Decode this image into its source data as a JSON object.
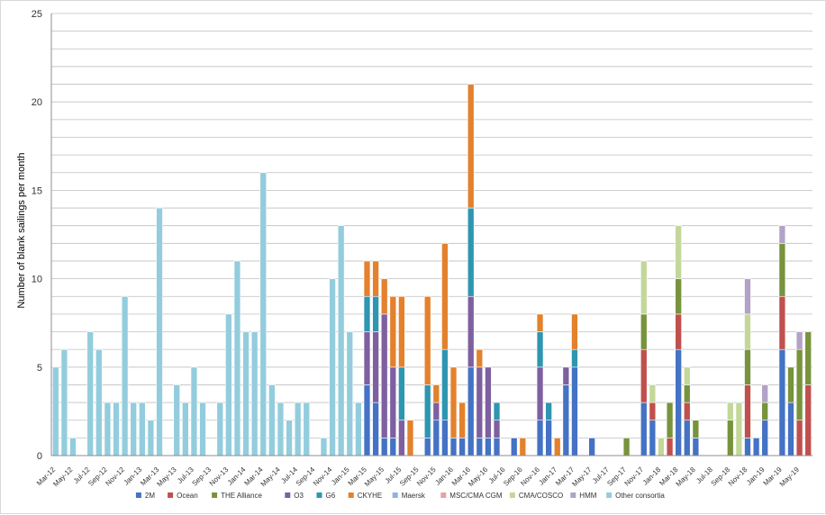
{
  "chart_data": {
    "type": "bar",
    "stacked": true,
    "title": "",
    "xlabel": "",
    "ylabel": "Number of blank sailings per month",
    "ylim": [
      0,
      25
    ],
    "yticks": [
      0,
      5,
      10,
      15,
      20,
      25
    ],
    "grid": true,
    "legend_position": "bottom",
    "categories": [
      "Mar-12",
      "Apr-12",
      "May-12",
      "Jun-12",
      "Jul-12",
      "Aug-12",
      "Sep-12",
      "Oct-12",
      "Nov-12",
      "Dec-12",
      "Jan-13",
      "Feb-13",
      "Mar-13",
      "Apr-13",
      "May-13",
      "Jun-13",
      "Jul-13",
      "Aug-13",
      "Sep-13",
      "Oct-13",
      "Nov-13",
      "Dec-13",
      "Jan-14",
      "Feb-14",
      "Mar-14",
      "Apr-14",
      "May-14",
      "Jun-14",
      "Jul-14",
      "Aug-14",
      "Sep-14",
      "Oct-14",
      "Nov-14",
      "Dec-14",
      "Jan-15",
      "Feb-15",
      "Mar-15",
      "Apr-15",
      "May-15",
      "Jun-15",
      "Jul-15",
      "Aug-15",
      "Sep-15",
      "Oct-15",
      "Nov-15",
      "Dec-15",
      "Jan-16",
      "Feb-16",
      "Mar-16",
      "Apr-16",
      "May-16",
      "Jun-16",
      "Jul-16",
      "Aug-16",
      "Sep-16",
      "Oct-16",
      "Nov-16",
      "Dec-16",
      "Jan-17",
      "Feb-17",
      "Mar-17",
      "Apr-17",
      "May-17",
      "Jun-17",
      "Jul-17",
      "Aug-17",
      "Sep-17",
      "Oct-17",
      "Nov-17",
      "Dec-17",
      "Jan-18",
      "Feb-18",
      "Mar-18",
      "Apr-18",
      "May-18",
      "Jun-18",
      "Jul-18",
      "Aug-18",
      "Sep-18",
      "Oct-18",
      "Nov-18",
      "Dec-18",
      "Jan-19",
      "Feb-19",
      "Mar-19",
      "Apr-19",
      "May-19",
      "Jun-19"
    ],
    "tick_labels": [
      "Mar-12",
      "May-12",
      "Jul-12",
      "Sep-12",
      "Nov-12",
      "Jan-13",
      "Mar-13",
      "May-13",
      "Jul-13",
      "Sep-13",
      "Nov-13",
      "Jan-14",
      "Mar-14",
      "May-14",
      "Jul-14",
      "Sep-14",
      "Nov-14",
      "Jan-15",
      "Mar-15",
      "May-15",
      "Jul-15",
      "Sep-15",
      "Nov-15",
      "Jan-16",
      "Mar-16",
      "May-16",
      "Jul-16",
      "Sep-16",
      "Nov-16",
      "Jan-17",
      "Mar-17",
      "May-17",
      "Jul-17",
      "Sep-17",
      "Nov-17",
      "Jan-18",
      "Mar-18",
      "May-18",
      "Jul-18",
      "Sep-18",
      "Nov-18",
      "Jan-19",
      "Mar-19",
      "May-19"
    ],
    "series": [
      {
        "name": "2M",
        "color": "#4472c4",
        "values": [
          0,
          0,
          0,
          0,
          0,
          0,
          0,
          0,
          0,
          0,
          0,
          0,
          0,
          0,
          0,
          0,
          0,
          0,
          0,
          0,
          0,
          0,
          0,
          0,
          0,
          0,
          0,
          0,
          0,
          0,
          0,
          0,
          0,
          0,
          0,
          0,
          4,
          3,
          1,
          1,
          0,
          0,
          0,
          1,
          2,
          2,
          1,
          1,
          5,
          1,
          1,
          1,
          0,
          1,
          0,
          0,
          2,
          2,
          0,
          4,
          5,
          0,
          1,
          0,
          0,
          0,
          0,
          0,
          3,
          2,
          0,
          0,
          6,
          2,
          1,
          0,
          0,
          0,
          0,
          0,
          1,
          1,
          2,
          0,
          6,
          3,
          0,
          0
        ]
      },
      {
        "name": "Ocean",
        "color": "#c0504d",
        "values": [
          0,
          0,
          0,
          0,
          0,
          0,
          0,
          0,
          0,
          0,
          0,
          0,
          0,
          0,
          0,
          0,
          0,
          0,
          0,
          0,
          0,
          0,
          0,
          0,
          0,
          0,
          0,
          0,
          0,
          0,
          0,
          0,
          0,
          0,
          0,
          0,
          0,
          0,
          0,
          0,
          0,
          0,
          0,
          0,
          0,
          0,
          0,
          0,
          0,
          0,
          0,
          0,
          0,
          0,
          0,
          0,
          0,
          0,
          0,
          0,
          0,
          0,
          0,
          0,
          0,
          0,
          0,
          0,
          3,
          1,
          0,
          1,
          2,
          1,
          0,
          0,
          0,
          0,
          0,
          0,
          3,
          0,
          0,
          0,
          3,
          0,
          2,
          4
        ]
      },
      {
        "name": "THE Alliance",
        "color": "#77933c",
        "values": [
          0,
          0,
          0,
          0,
          0,
          0,
          0,
          0,
          0,
          0,
          0,
          0,
          0,
          0,
          0,
          0,
          0,
          0,
          0,
          0,
          0,
          0,
          0,
          0,
          0,
          0,
          0,
          0,
          0,
          0,
          0,
          0,
          0,
          0,
          0,
          0,
          0,
          0,
          0,
          0,
          0,
          0,
          0,
          0,
          0,
          0,
          0,
          0,
          0,
          0,
          0,
          0,
          0,
          0,
          0,
          0,
          0,
          0,
          0,
          0,
          0,
          0,
          0,
          0,
          0,
          0,
          1,
          0,
          2,
          0,
          0,
          2,
          2,
          1,
          1,
          0,
          0,
          0,
          2,
          0,
          2,
          0,
          1,
          0,
          3,
          2,
          4,
          3
        ]
      },
      {
        "name": "O3",
        "color": "#7e5fa0",
        "values": [
          0,
          0,
          0,
          0,
          0,
          0,
          0,
          0,
          0,
          0,
          0,
          0,
          0,
          0,
          0,
          0,
          0,
          0,
          0,
          0,
          0,
          0,
          0,
          0,
          0,
          0,
          0,
          0,
          0,
          0,
          0,
          0,
          0,
          0,
          0,
          0,
          3,
          4,
          7,
          4,
          2,
          0,
          0,
          0,
          1,
          0,
          0,
          0,
          4,
          4,
          4,
          1,
          0,
          0,
          0,
          0,
          3,
          0,
          0,
          1,
          0,
          0,
          0,
          0,
          0,
          0,
          0,
          0,
          0,
          0,
          0,
          0,
          0,
          0,
          0,
          0,
          0,
          0,
          0,
          0,
          0,
          0,
          0,
          0,
          0,
          0,
          0,
          0
        ]
      },
      {
        "name": "G6",
        "color": "#2e96b0",
        "values": [
          0,
          0,
          0,
          0,
          0,
          0,
          0,
          0,
          0,
          0,
          0,
          0,
          0,
          0,
          0,
          0,
          0,
          0,
          0,
          0,
          0,
          0,
          0,
          0,
          0,
          0,
          0,
          0,
          0,
          0,
          0,
          0,
          0,
          0,
          0,
          0,
          2,
          2,
          0,
          0,
          3,
          0,
          0,
          3,
          0,
          4,
          0,
          0,
          5,
          0,
          0,
          1,
          0,
          0,
          0,
          0,
          2,
          1,
          0,
          0,
          1,
          0,
          0,
          0,
          0,
          0,
          0,
          0,
          0,
          0,
          0,
          0,
          0,
          0,
          0,
          0,
          0,
          0,
          0,
          0,
          0,
          0,
          0,
          0,
          0,
          0,
          0,
          0
        ]
      },
      {
        "name": "CKYHE",
        "color": "#e3812c",
        "values": [
          0,
          0,
          0,
          0,
          0,
          0,
          0,
          0,
          0,
          0,
          0,
          0,
          0,
          0,
          0,
          0,
          0,
          0,
          0,
          0,
          0,
          0,
          0,
          0,
          0,
          0,
          0,
          0,
          0,
          0,
          0,
          0,
          0,
          0,
          0,
          0,
          2,
          2,
          2,
          4,
          4,
          2,
          0,
          5,
          1,
          6,
          4,
          2,
          7,
          1,
          0,
          0,
          0,
          0,
          1,
          0,
          1,
          0,
          1,
          0,
          2,
          0,
          0,
          0,
          0,
          0,
          0,
          0,
          0,
          0,
          0,
          0,
          0,
          0,
          0,
          0,
          0,
          0,
          0,
          0,
          0,
          0,
          0,
          0,
          0,
          0,
          0,
          0
        ]
      },
      {
        "name": "Maersk",
        "color": "#8eb4e3",
        "values": [
          0,
          0,
          0,
          0,
          0,
          0,
          0,
          0,
          0,
          0,
          0,
          0,
          0,
          0,
          0,
          0,
          0,
          0,
          0,
          0,
          0,
          0,
          0,
          0,
          0,
          0,
          0,
          0,
          0,
          0,
          0,
          0,
          0,
          0,
          0,
          0,
          0,
          0,
          0,
          0,
          0,
          0,
          0,
          0,
          0,
          0,
          0,
          0,
          0,
          0,
          0,
          0,
          0,
          0,
          0,
          0,
          0,
          0,
          0,
          0,
          0,
          0,
          0,
          0,
          0,
          0,
          0,
          0,
          0,
          0,
          0,
          0,
          0,
          0,
          0,
          0,
          0,
          0,
          0,
          0,
          0,
          0,
          0,
          0,
          0,
          0,
          0,
          0
        ]
      },
      {
        "name": "MSC/CMA CGM",
        "color": "#e6a1a6",
        "values": [
          0,
          0,
          0,
          0,
          0,
          0,
          0,
          0,
          0,
          0,
          0,
          0,
          0,
          0,
          0,
          0,
          0,
          0,
          0,
          0,
          0,
          0,
          0,
          0,
          0,
          0,
          0,
          0,
          0,
          0,
          0,
          0,
          0,
          0,
          0,
          0,
          0,
          0,
          0,
          0,
          0,
          0,
          0,
          0,
          0,
          0,
          0,
          0,
          0,
          0,
          0,
          0,
          0,
          0,
          0,
          0,
          0,
          0,
          0,
          0,
          0,
          0,
          0,
          0,
          0,
          0,
          0,
          0,
          0,
          0,
          0,
          0,
          0,
          0,
          0,
          0,
          0,
          0,
          0,
          0,
          0,
          0,
          0,
          0,
          0,
          0,
          0,
          0
        ]
      },
      {
        "name": "CMA/COSCO",
        "color": "#c4d79b",
        "values": [
          0,
          0,
          0,
          0,
          0,
          0,
          0,
          0,
          0,
          0,
          0,
          0,
          0,
          0,
          0,
          0,
          0,
          0,
          0,
          0,
          0,
          0,
          0,
          0,
          0,
          0,
          0,
          0,
          0,
          0,
          0,
          0,
          0,
          0,
          0,
          0,
          0,
          0,
          0,
          0,
          0,
          0,
          0,
          0,
          0,
          0,
          0,
          0,
          0,
          0,
          0,
          0,
          0,
          0,
          0,
          0,
          0,
          0,
          0,
          0,
          0,
          0,
          0,
          0,
          0,
          0,
          0,
          0,
          3,
          1,
          1,
          0,
          3,
          1,
          0,
          0,
          0,
          0,
          1,
          3,
          2,
          0,
          0,
          0,
          0,
          0,
          0,
          0
        ]
      },
      {
        "name": "HMM",
        "color": "#b3a2c7",
        "values": [
          0,
          0,
          0,
          0,
          0,
          0,
          0,
          0,
          0,
          0,
          0,
          0,
          0,
          0,
          0,
          0,
          0,
          0,
          0,
          0,
          0,
          0,
          0,
          0,
          0,
          0,
          0,
          0,
          0,
          0,
          0,
          0,
          0,
          0,
          0,
          0,
          0,
          0,
          0,
          0,
          0,
          0,
          0,
          0,
          0,
          0,
          0,
          0,
          0,
          0,
          0,
          0,
          0,
          0,
          0,
          0,
          0,
          0,
          0,
          0,
          0,
          0,
          0,
          0,
          0,
          0,
          0,
          0,
          0,
          0,
          0,
          0,
          0,
          0,
          0,
          0,
          0,
          0,
          0,
          0,
          2,
          0,
          1,
          0,
          1,
          0,
          1,
          0
        ]
      },
      {
        "name": "Other consortia",
        "color": "#93cddd",
        "values": [
          5,
          6,
          1,
          0,
          7,
          6,
          3,
          3,
          9,
          3,
          3,
          2,
          14,
          0,
          4,
          3,
          5,
          3,
          0,
          3,
          8,
          11,
          7,
          7,
          16,
          4,
          3,
          2,
          3,
          3,
          0,
          1,
          10,
          13,
          7,
          3,
          0,
          0,
          0,
          0,
          0,
          0,
          0,
          0,
          0,
          0,
          0,
          0,
          0,
          0,
          0,
          0,
          0,
          0,
          0,
          0,
          0,
          0,
          0,
          0,
          0,
          0,
          0,
          0,
          0,
          0,
          0,
          0,
          0,
          0,
          0,
          0,
          0,
          0,
          0,
          0,
          0,
          0,
          0,
          0,
          0,
          0,
          0,
          0,
          0,
          0,
          0,
          0
        ]
      }
    ]
  }
}
